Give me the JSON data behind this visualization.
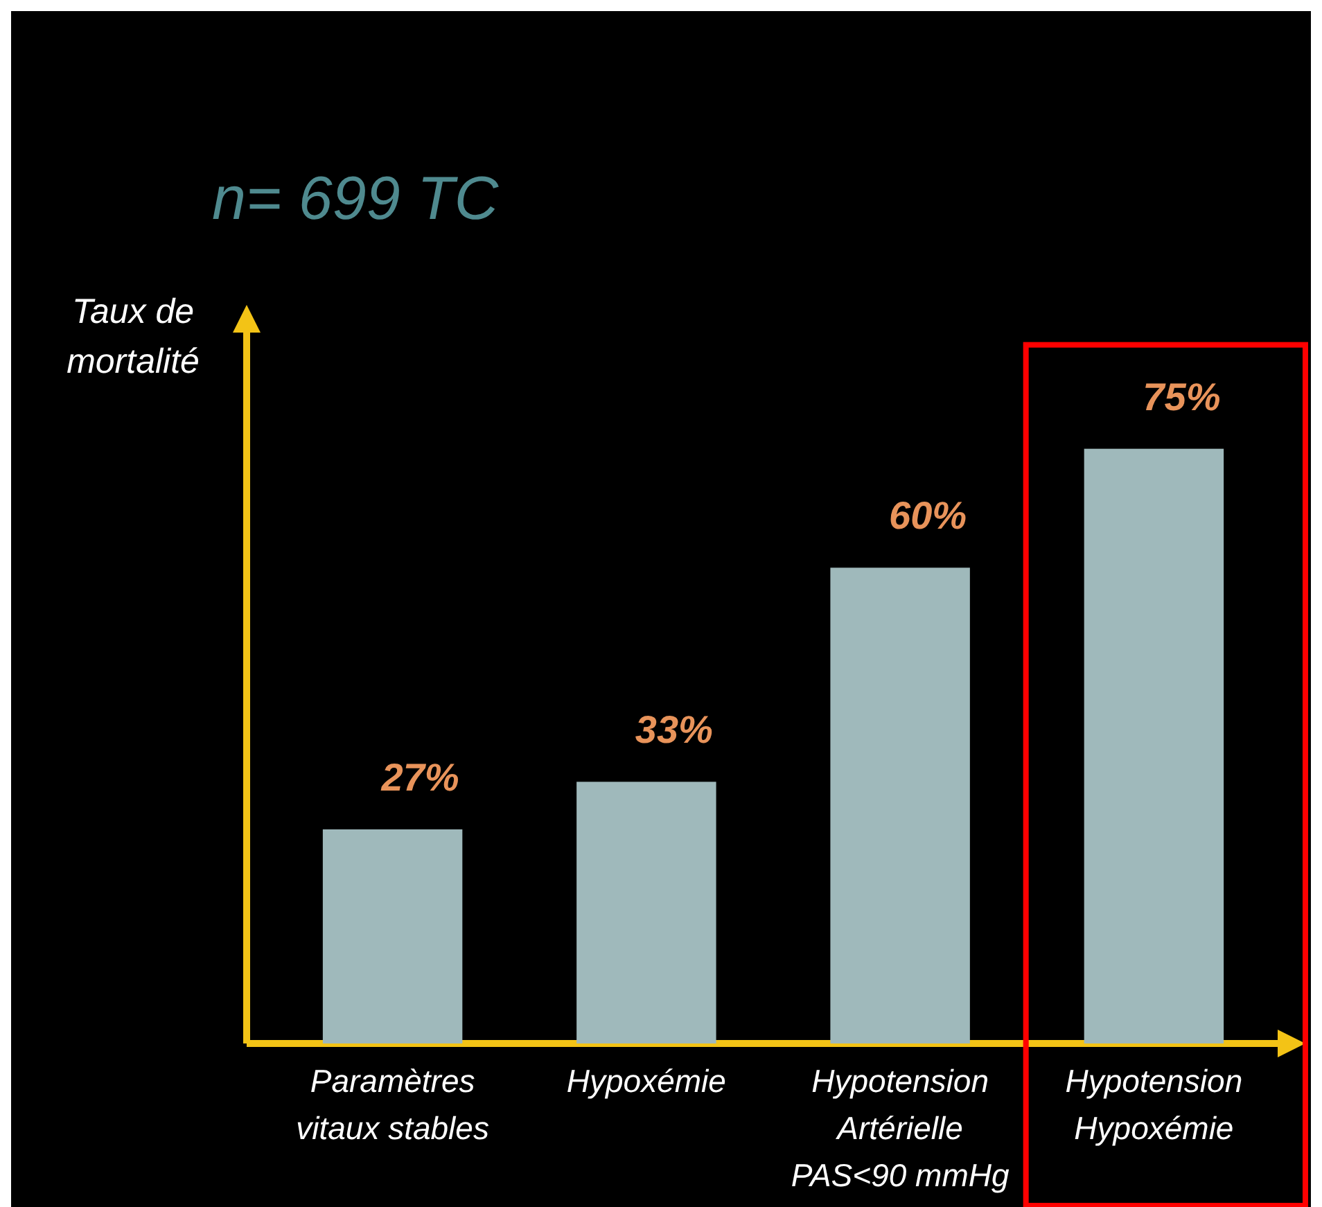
{
  "chart_data": {
    "type": "bar",
    "title": "n= 699 TC",
    "ylabel": "Taux de mortalité",
    "categories": [
      "Paramètres vitaux stables",
      "Hypoxémie",
      "Hypotension Artérielle PAS<90 mmHg",
      "Hypotension Hypoxémie"
    ],
    "values": [
      27,
      33,
      60,
      75
    ],
    "color": "#9fb9bb",
    "data_labels": true,
    "value_labels": [
      "27%",
      "33%",
      "60%",
      "75%"
    ]
  }
}
